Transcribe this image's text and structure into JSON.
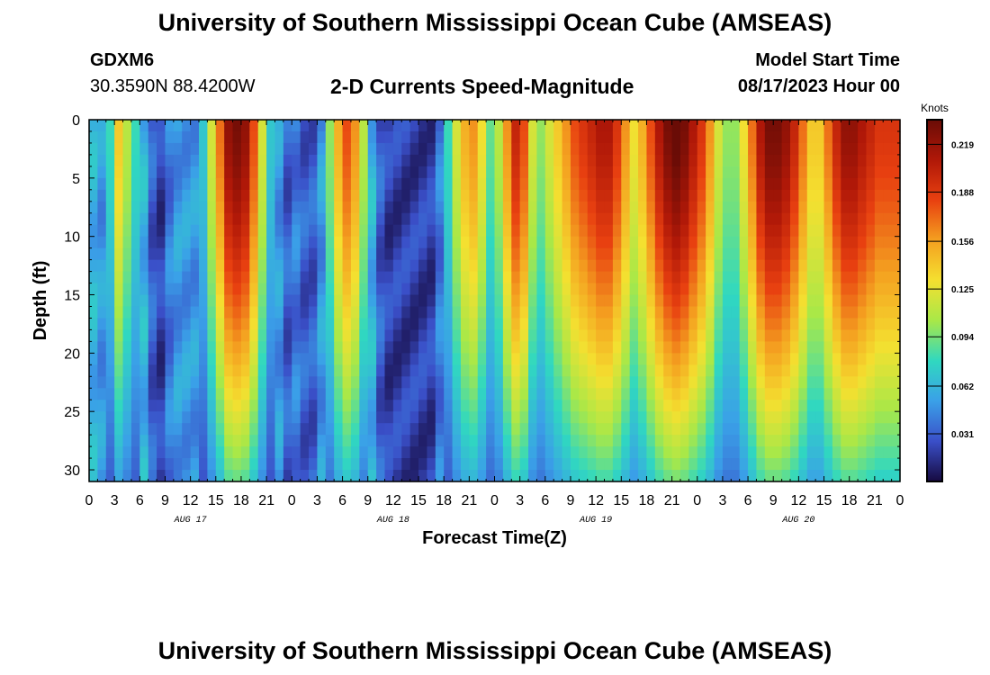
{
  "header": {
    "title": "University of Southern Mississippi Ocean Cube (AMSEAS)",
    "station": "GDXM6",
    "coords": "30.3590N  88.4200W",
    "product": "2-D Currents Speed-Magnitude",
    "model_start_label": "Model Start Time",
    "model_start_value": "08/17/2023 Hour 00"
  },
  "footer": {
    "title": "University of Southern Mississippi Ocean Cube (AMSEAS)"
  },
  "chart_data": {
    "type": "heatmap",
    "title": "2-D Currents Speed-Magnitude",
    "xlabel": "Forecast Time(Z)",
    "ylabel": "Depth (ft)",
    "xlim": [
      0,
      96
    ],
    "ylim": [
      31,
      0
    ],
    "x_tick_values": [
      0,
      3,
      6,
      9,
      12,
      15,
      18,
      21,
      24,
      27,
      30,
      33,
      36,
      39,
      42,
      45,
      48,
      51,
      54,
      57,
      60,
      63,
      66,
      69,
      72,
      75,
      78,
      81,
      84,
      87,
      90,
      93,
      96
    ],
    "x_tick_labels": [
      "0",
      "3",
      "6",
      "9",
      "12",
      "15",
      "18",
      "21",
      "0",
      "3",
      "6",
      "9",
      "12",
      "15",
      "18",
      "21",
      "0",
      "3",
      "6",
      "9",
      "12",
      "15",
      "18",
      "21",
      "0",
      "3",
      "6",
      "9",
      "12",
      "15",
      "18",
      "21",
      "0"
    ],
    "y_ticks": [
      0,
      5,
      10,
      15,
      20,
      25,
      30
    ],
    "date_labels": [
      {
        "text": "AUG 17",
        "hour": 12
      },
      {
        "text": "AUG 18",
        "hour": 36
      },
      {
        "text": "AUG 19",
        "hour": 60
      },
      {
        "text": "AUG 20",
        "hour": 84
      }
    ],
    "colorbar": {
      "label": "Knots",
      "min": 0,
      "max": 0.235,
      "ticks": [
        0.031,
        0.062,
        0.094,
        0.125,
        0.156,
        0.188,
        0.219
      ],
      "colors": [
        "#160a40",
        "#3a4fc8",
        "#3aa0e8",
        "#30d8c0",
        "#a8e848",
        "#f4e030",
        "#f4a020",
        "#e84010",
        "#b01808",
        "#6a0c06"
      ]
    },
    "speed_hour_knots": [
      0.06,
      0.05,
      0.08,
      0.14,
      0.11,
      0.08,
      0.06,
      0.03,
      0.02,
      0.04,
      0.05,
      0.05,
      0.05,
      0.07,
      0.12,
      0.17,
      0.22,
      0.23,
      0.22,
      0.18,
      0.12,
      0.07,
      0.05,
      0.03,
      0.04,
      0.03,
      0.03,
      0.05,
      0.1,
      0.15,
      0.18,
      0.16,
      0.11,
      0.06,
      0.03,
      0.02,
      0.02,
      0.02,
      0.02,
      0.02,
      0.02,
      0.04,
      0.08,
      0.12,
      0.15,
      0.16,
      0.13,
      0.09,
      0.11,
      0.16,
      0.2,
      0.18,
      0.12,
      0.1,
      0.12,
      0.14,
      0.16,
      0.18,
      0.19,
      0.2,
      0.21,
      0.21,
      0.19,
      0.16,
      0.13,
      0.15,
      0.18,
      0.21,
      0.23,
      0.24,
      0.23,
      0.21,
      0.19,
      0.16,
      0.12,
      0.1,
      0.1,
      0.13,
      0.17,
      0.21,
      0.23,
      0.23,
      0.22,
      0.2,
      0.17,
      0.14,
      0.14,
      0.17,
      0.2,
      0.22,
      0.22,
      0.21,
      0.2,
      0.19,
      0.19,
      0.19
    ],
    "rows_ft": 31
  }
}
